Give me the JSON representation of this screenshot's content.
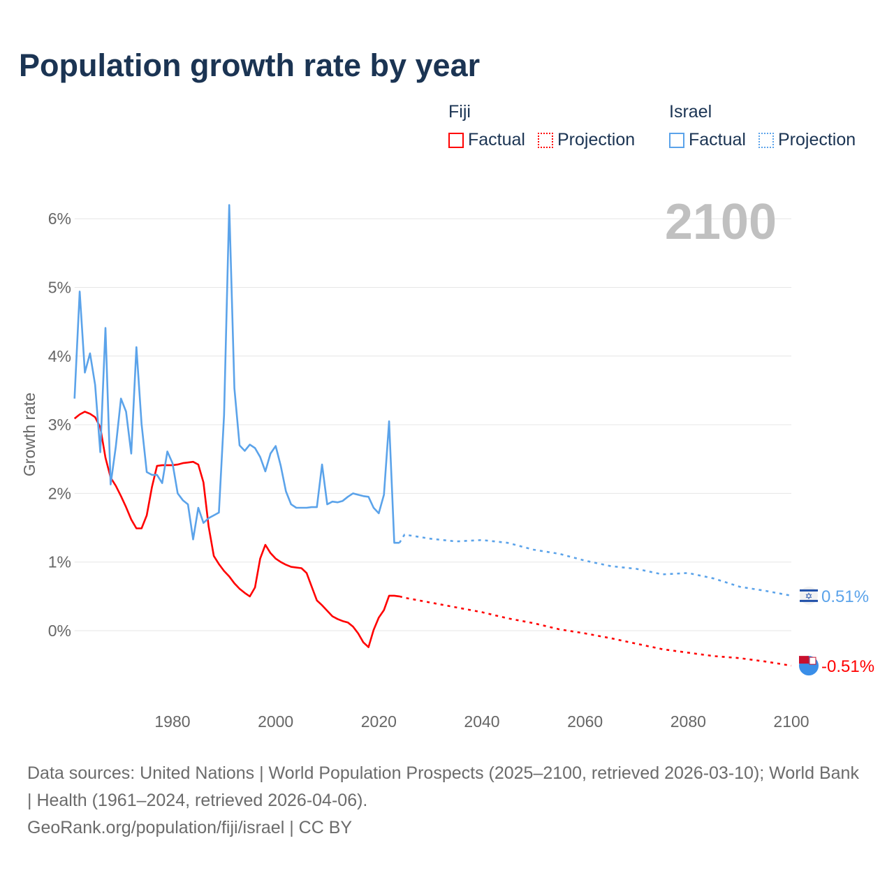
{
  "title": "Population growth rate by year",
  "legend": {
    "groups": [
      {
        "name": "Fiji",
        "factual_label": "Factual",
        "projection_label": "Projection",
        "color": "#ff0000"
      },
      {
        "name": "Israel",
        "factual_label": "Factual",
        "projection_label": "Projection",
        "color": "#5ba3ea"
      }
    ]
  },
  "chart_data": {
    "type": "line",
    "title": "Population growth rate by year",
    "ylabel": "Growth rate",
    "xlabel": "",
    "year_indicator": "2100",
    "xlim": [
      1961,
      2100
    ],
    "ylim": [
      -1,
      6.4
    ],
    "x_ticks": [
      1980,
      2000,
      2020,
      2040,
      2060,
      2080,
      2100
    ],
    "y_ticks": [
      0,
      1,
      2,
      3,
      4,
      5,
      6
    ],
    "y_tick_labels": [
      "0%",
      "1%",
      "2%",
      "3%",
      "4%",
      "5%",
      "6%"
    ],
    "grid": true,
    "series": [
      {
        "name": "Fiji",
        "kind": "factual",
        "color": "#ff0000",
        "x": [
          1961,
          1962,
          1963,
          1964,
          1965,
          1966,
          1967,
          1968,
          1969,
          1970,
          1971,
          1972,
          1973,
          1974,
          1975,
          1976,
          1977,
          1978,
          1979,
          1980,
          1981,
          1982,
          1983,
          1984,
          1985,
          1986,
          1987,
          1988,
          1989,
          1990,
          1991,
          1992,
          1993,
          1994,
          1995,
          1996,
          1997,
          1998,
          1999,
          2000,
          2001,
          2002,
          2003,
          2004,
          2005,
          2006,
          2007,
          2008,
          2009,
          2010,
          2011,
          2012,
          2013,
          2014,
          2015,
          2016,
          2017,
          2018,
          2019,
          2020,
          2021,
          2022,
          2023,
          2024
        ],
        "y": [
          3.09,
          3.15,
          3.19,
          3.16,
          3.11,
          2.96,
          2.52,
          2.23,
          2.11,
          1.96,
          1.8,
          1.62,
          1.49,
          1.49,
          1.68,
          2.09,
          2.4,
          2.41,
          2.41,
          2.41,
          2.42,
          2.44,
          2.45,
          2.46,
          2.42,
          2.16,
          1.52,
          1.09,
          0.97,
          0.87,
          0.79,
          0.69,
          0.61,
          0.55,
          0.5,
          0.63,
          1.05,
          1.25,
          1.13,
          1.05,
          1.0,
          0.96,
          0.93,
          0.92,
          0.91,
          0.84,
          0.64,
          0.44,
          0.37,
          0.29,
          0.21,
          0.17,
          0.14,
          0.12,
          0.06,
          -0.04,
          -0.17,
          -0.24,
          0.01,
          0.19,
          0.3,
          0.51,
          0.51,
          0.5
        ]
      },
      {
        "name": "Fiji",
        "kind": "projection",
        "color": "#ff0000",
        "x": [
          2024,
          2025,
          2030,
          2035,
          2040,
          2045,
          2050,
          2055,
          2060,
          2065,
          2070,
          2075,
          2080,
          2085,
          2090,
          2095,
          2100
        ],
        "y": [
          0.5,
          0.48,
          0.41,
          0.34,
          0.27,
          0.18,
          0.11,
          0.02,
          -0.04,
          -0.11,
          -0.19,
          -0.27,
          -0.32,
          -0.37,
          -0.4,
          -0.45,
          -0.51
        ]
      },
      {
        "name": "Israel",
        "kind": "factual",
        "color": "#5ba3ea",
        "x": [
          1961,
          1962,
          1963,
          1964,
          1965,
          1966,
          1967,
          1968,
          1969,
          1970,
          1971,
          1972,
          1973,
          1974,
          1975,
          1976,
          1977,
          1978,
          1979,
          1980,
          1981,
          1982,
          1983,
          1984,
          1985,
          1986,
          1987,
          1988,
          1989,
          1990,
          1991,
          1992,
          1993,
          1994,
          1995,
          1996,
          1997,
          1998,
          1999,
          2000,
          2001,
          2002,
          2003,
          2004,
          2005,
          2006,
          2007,
          2008,
          2009,
          2010,
          2011,
          2012,
          2013,
          2014,
          2015,
          2016,
          2017,
          2018,
          2019,
          2020,
          2021,
          2022,
          2023,
          2024
        ],
        "y": [
          3.38,
          4.94,
          3.76,
          4.04,
          3.58,
          2.6,
          4.41,
          2.13,
          2.68,
          3.38,
          3.19,
          2.58,
          4.13,
          3.01,
          2.31,
          2.27,
          2.27,
          2.15,
          2.61,
          2.44,
          2.0,
          1.9,
          1.84,
          1.33,
          1.79,
          1.57,
          1.64,
          1.68,
          1.72,
          3.14,
          6.2,
          3.53,
          2.7,
          2.62,
          2.71,
          2.66,
          2.53,
          2.32,
          2.58,
          2.69,
          2.4,
          2.03,
          1.84,
          1.79,
          1.79,
          1.79,
          1.8,
          1.8,
          2.42,
          1.84,
          1.88,
          1.87,
          1.89,
          1.95,
          2.0,
          1.98,
          1.96,
          1.95,
          1.79,
          1.71,
          1.98,
          3.05,
          1.28,
          1.28
        ]
      },
      {
        "name": "Israel",
        "kind": "projection",
        "color": "#5ba3ea",
        "x": [
          2024,
          2025,
          2030,
          2035,
          2040,
          2045,
          2050,
          2055,
          2060,
          2065,
          2070,
          2075,
          2080,
          2085,
          2090,
          2095,
          2100
        ],
        "y": [
          1.28,
          1.4,
          1.34,
          1.3,
          1.32,
          1.28,
          1.18,
          1.12,
          1.02,
          0.94,
          0.9,
          0.82,
          0.84,
          0.76,
          0.64,
          0.58,
          0.51
        ]
      }
    ],
    "end_labels": [
      {
        "country": "Israel",
        "text": "0.51%",
        "value": 0.51,
        "color": "#5ba3ea",
        "icon": "israel-flag-icon"
      },
      {
        "country": "Fiji",
        "text": "-0.51%",
        "value": -0.51,
        "color": "#ff0000",
        "icon": "fiji-flag-icon"
      }
    ]
  },
  "footer": {
    "sources": "Data sources: United Nations | World Population Prospects (2025–2100, retrieved 2026-03-10); World Bank | Health (1961–2024, retrieved 2026-04-06).",
    "credit": "GeoRank.org/population/fiji/israel | CC BY"
  }
}
